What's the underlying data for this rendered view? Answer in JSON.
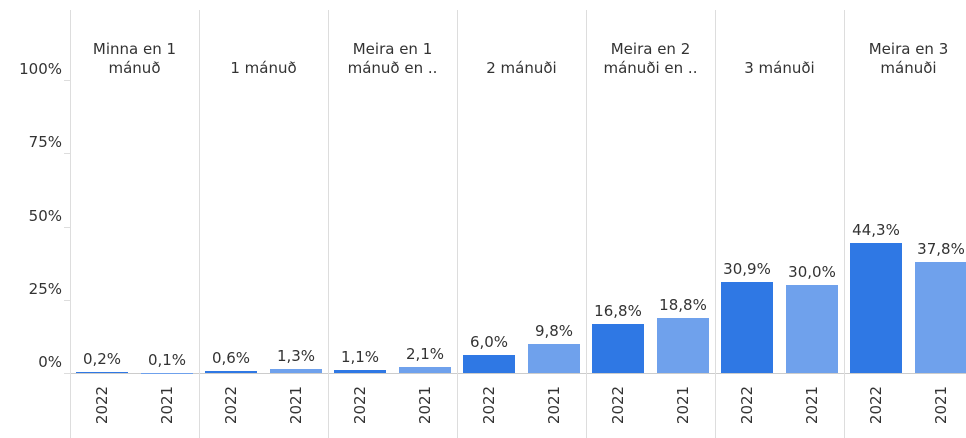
{
  "chart_data": {
    "type": "bar",
    "categories": [
      "Minna en 1 mánuð",
      "1 mánuð",
      "Meira en 1 mánuð en ..",
      "2 mánuði",
      "Meira en 2 mánuði en ..",
      "3 mánuði",
      "Meira en 3 mánuði"
    ],
    "series": [
      {
        "name": "2022",
        "color": "#2f78e4",
        "values": [
          0.2,
          0.6,
          1.1,
          6.0,
          16.8,
          30.9,
          44.3
        ],
        "value_labels": [
          "0,2%",
          "0,6%",
          "1,1%",
          "6,0%",
          "16,8%",
          "30,9%",
          "44,3%"
        ]
      },
      {
        "name": "2021",
        "color": "#6fa1ec",
        "values": [
          0.1,
          1.3,
          2.1,
          9.8,
          18.8,
          30.0,
          37.8
        ],
        "value_labels": [
          "0,1%",
          "1,3%",
          "2,1%",
          "9,8%",
          "18,8%",
          "30,0%",
          "37,8%"
        ]
      }
    ],
    "ylim": [
      0,
      100
    ],
    "yticks": [
      {
        "value": 0,
        "label": "0%"
      },
      {
        "value": 25,
        "label": "25%"
      },
      {
        "value": 50,
        "label": "50%"
      },
      {
        "value": 75,
        "label": "75%"
      },
      {
        "value": 100,
        "label": "100%"
      }
    ]
  }
}
